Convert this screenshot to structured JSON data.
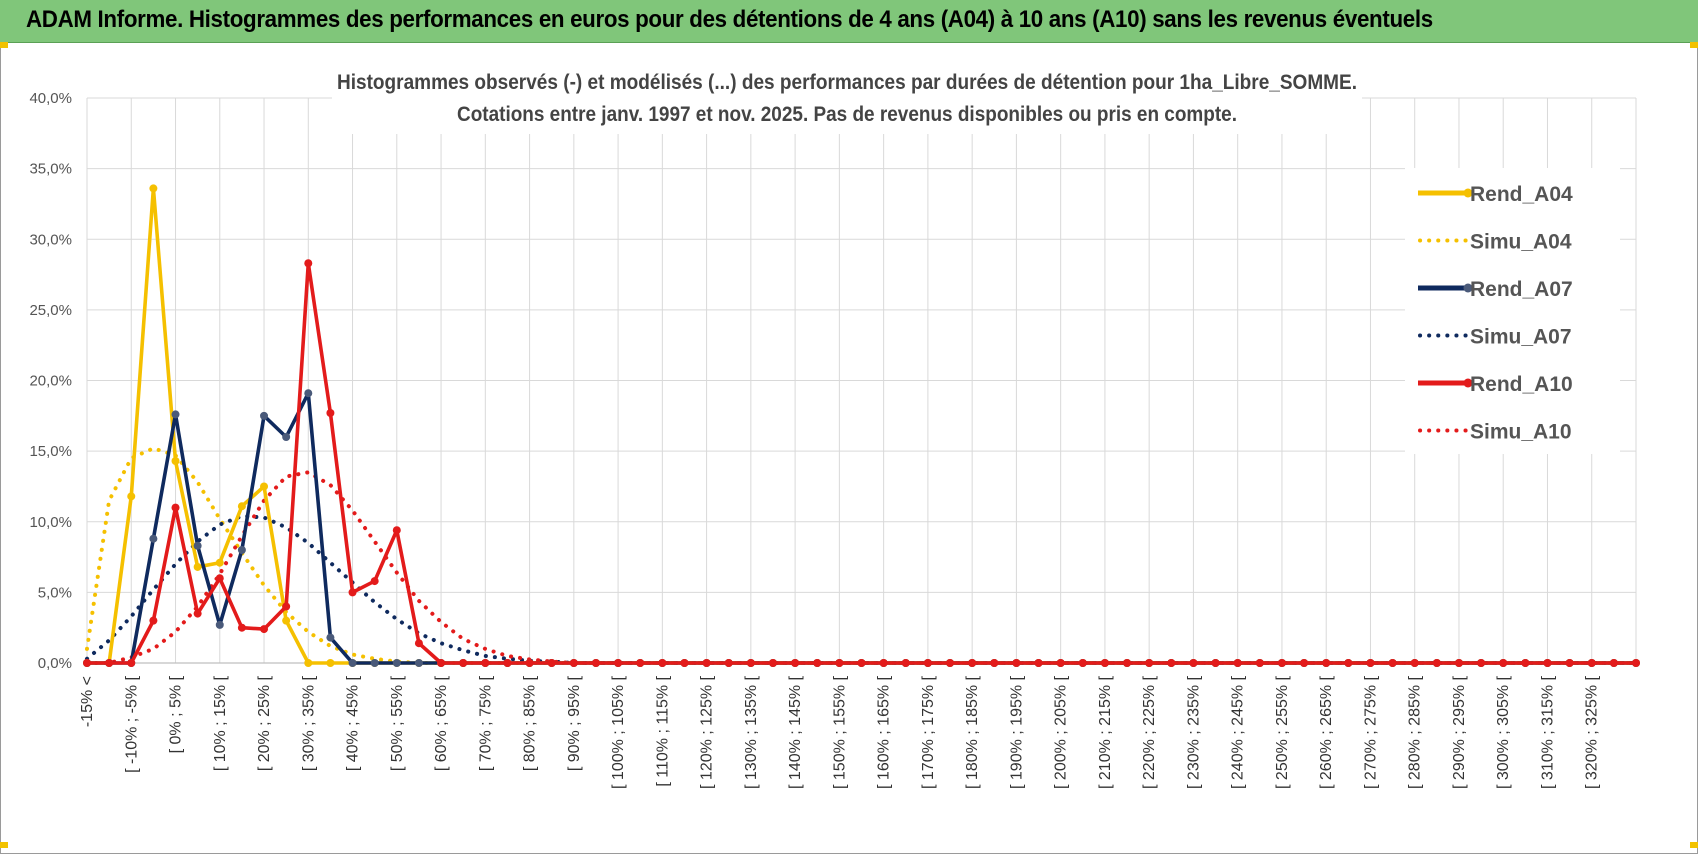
{
  "header": {
    "title": "ADAM Informe. Histogrammes des performances en euros pour des détentions de 4 ans (A04) à 10 ans (A10) sans les revenus éventuels"
  },
  "chart_data": {
    "type": "line",
    "title_line1": "Histogrammes observés (-) et modélisés (...) des performances par durées de détention pour 1ha_Libre_SOMME.",
    "title_line2": "Cotations entre janv. 1997 et nov. 2025. Pas de revenus disponibles ou pris en compte.",
    "ylim": [
      0,
      40
    ],
    "yticks": [
      "0,0%",
      "5,0%",
      "10,0%",
      "15,0%",
      "20,0%",
      "25,0%",
      "30,0%",
      "35,0%",
      "40,0%"
    ],
    "categories_count": 71,
    "tick_labels": [
      "-15% <",
      "[ -10% ; -5% [",
      "[ 0% ; 5% [",
      "[ 10% ; 15% [",
      "[ 20% ; 25% [",
      "[ 30% ; 35% [",
      "[ 40% ; 45% [",
      "[ 50% ; 55% [",
      "[ 60% ; 65% [",
      "[ 70% ; 75% [",
      "[ 80% ; 85% [",
      "[ 90% ; 95% [",
      "[ 100% ; 105% [",
      "[ 110% ; 115% [",
      "[ 120% ; 125% [",
      "[ 130% ; 135% [",
      "[ 140% ; 145% [",
      "[ 150% ; 155% [",
      "[ 160% ; 165% [",
      "[ 170% ; 175% [",
      "[ 180% ; 185% [",
      "[ 190% ; 195% [",
      "[ 200% ; 205% [",
      "[ 210% ; 215% [",
      "[ 220% ; 225% [",
      "[ 230% ; 235% [",
      "[ 240% ; 245% [",
      "[ 250% ; 255% [",
      "[ 260% ; 265% [",
      "[ 270% ; 275% [",
      "[ 280% ; 285% [",
      "[ 290% ; 295% [",
      "[ 300% ; 305% [",
      "[ 310% ; 315% [",
      "[ 320% ; 325% ["
    ],
    "grid": true,
    "legend_position": "right",
    "series": [
      {
        "name": "Rend_A04",
        "style": "solid",
        "color": "#f5c000",
        "values": [
          0,
          0,
          11.8,
          33.6,
          14.3,
          6.8,
          7.1,
          11.1,
          12.5,
          3.0,
          0,
          0,
          0,
          0,
          0,
          0,
          0,
          0,
          0,
          0,
          0,
          0,
          0,
          0,
          0,
          0,
          0,
          0,
          0,
          0,
          0,
          0,
          0,
          0,
          0,
          0,
          0,
          0,
          0,
          0,
          0,
          0,
          0,
          0,
          0,
          0,
          0,
          0,
          0,
          0,
          0,
          0,
          0,
          0,
          0,
          0,
          0,
          0,
          0,
          0,
          0,
          0,
          0,
          0,
          0,
          0,
          0,
          0,
          0,
          0,
          0
        ]
      },
      {
        "name": "Simu_A04",
        "style": "dotted",
        "color": "#f5c000",
        "values": [
          1.0,
          11.5,
          14.5,
          15.2,
          14.7,
          12.8,
          10.2,
          7.8,
          5.5,
          3.6,
          2.2,
          1.2,
          0.6,
          0.3,
          0.1,
          0,
          0,
          0,
          0,
          0,
          0,
          0,
          0,
          0,
          0,
          0,
          0,
          0,
          0,
          0,
          0,
          0,
          0,
          0,
          0,
          0,
          0,
          0,
          0,
          0,
          0,
          0,
          0,
          0,
          0,
          0,
          0,
          0,
          0,
          0,
          0,
          0,
          0,
          0,
          0,
          0,
          0,
          0,
          0,
          0,
          0,
          0,
          0,
          0,
          0,
          0,
          0,
          0,
          0,
          0,
          0
        ]
      },
      {
        "name": "Rend_A07",
        "style": "solid",
        "color": "#0f2a5e",
        "values": [
          0,
          0,
          0,
          8.8,
          17.6,
          8.3,
          2.7,
          8.0,
          17.5,
          16.0,
          19.1,
          1.8,
          0,
          0,
          0,
          0,
          0,
          0,
          0,
          0,
          0,
          0,
          0,
          0,
          0,
          0,
          0,
          0,
          0,
          0,
          0,
          0,
          0,
          0,
          0,
          0,
          0,
          0,
          0,
          0,
          0,
          0,
          0,
          0,
          0,
          0,
          0,
          0,
          0,
          0,
          0,
          0,
          0,
          0,
          0,
          0,
          0,
          0,
          0,
          0,
          0,
          0,
          0,
          0,
          0,
          0,
          0,
          0,
          0,
          0,
          0
        ]
      },
      {
        "name": "Simu_A07",
        "style": "dotted",
        "color": "#0f2a5e",
        "values": [
          0.3,
          1.6,
          3.3,
          5.2,
          7.0,
          8.6,
          9.8,
          10.4,
          10.3,
          9.6,
          8.5,
          7.1,
          5.7,
          4.3,
          3.1,
          2.1,
          1.4,
          0.9,
          0.5,
          0.3,
          0.15,
          0.1,
          0,
          0,
          0,
          0,
          0,
          0,
          0,
          0,
          0,
          0,
          0,
          0,
          0,
          0,
          0,
          0,
          0,
          0,
          0,
          0,
          0,
          0,
          0,
          0,
          0,
          0,
          0,
          0,
          0,
          0,
          0,
          0,
          0,
          0,
          0,
          0,
          0,
          0,
          0,
          0,
          0,
          0,
          0,
          0,
          0,
          0,
          0,
          0,
          0
        ]
      },
      {
        "name": "Rend_A10",
        "style": "solid",
        "color": "#e31b1b",
        "values": [
          0,
          0,
          0,
          3.0,
          11.0,
          3.5,
          6.0,
          2.5,
          2.4,
          4.0,
          28.3,
          17.7,
          5.0,
          5.8,
          9.4,
          1.4,
          0,
          0,
          0,
          0,
          0,
          0,
          0,
          0,
          0,
          0,
          0,
          0,
          0,
          0,
          0,
          0,
          0,
          0,
          0,
          0,
          0,
          0,
          0,
          0,
          0,
          0,
          0,
          0,
          0,
          0,
          0,
          0,
          0,
          0,
          0,
          0,
          0,
          0,
          0,
          0,
          0,
          0,
          0,
          0,
          0,
          0,
          0,
          0,
          0,
          0,
          0,
          0,
          0,
          0,
          0
        ]
      },
      {
        "name": "Simu_A10",
        "style": "dotted",
        "color": "#e31b1b",
        "values": [
          0,
          0,
          0.4,
          1.0,
          2.2,
          4.0,
          6.3,
          9.0,
          11.5,
          13.2,
          13.5,
          12.6,
          10.8,
          8.6,
          6.4,
          4.4,
          2.9,
          1.7,
          1.0,
          0.5,
          0.25,
          0.1,
          0,
          0,
          0,
          0,
          0,
          0,
          0,
          0,
          0,
          0,
          0,
          0,
          0,
          0,
          0,
          0,
          0,
          0,
          0,
          0,
          0,
          0,
          0,
          0,
          0,
          0,
          0,
          0,
          0,
          0,
          0,
          0,
          0,
          0,
          0,
          0,
          0,
          0,
          0,
          0,
          0,
          0,
          0,
          0,
          0,
          0,
          0,
          0,
          0
        ]
      }
    ]
  }
}
